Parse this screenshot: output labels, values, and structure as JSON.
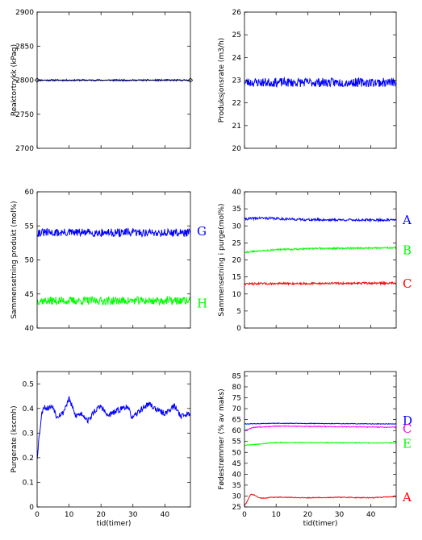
{
  "chart_data": [
    {
      "type": "line",
      "ylabel": "Reaktortrykk (kPag)",
      "xlabel": "",
      "xlim": [
        0,
        48
      ],
      "ylim": [
        2700,
        2900
      ],
      "yticks": [
        2700,
        2750,
        2800,
        2850,
        2900
      ],
      "xticks": [
        0,
        10,
        20,
        30,
        40
      ],
      "show_xticklabels": false,
      "series": [
        {
          "name": "",
          "color": "#0000ff",
          "base": [
            [
              0,
              2800
            ],
            [
              48,
              2800
            ]
          ],
          "noise": 1.2,
          "seed": 11
        },
        {
          "name": "",
          "color": "#000000",
          "marker": "diamond",
          "points": [
            [
              0,
              2800
            ],
            [
              48,
              2800
            ]
          ]
        }
      ]
    },
    {
      "type": "line",
      "ylabel": "Produksjonsrate (m3/h)",
      "xlabel": "",
      "xlim": [
        0,
        48
      ],
      "ylim": [
        20,
        26
      ],
      "yticks": [
        20,
        21,
        22,
        23,
        24,
        25,
        26
      ],
      "xticks": [
        0,
        10,
        20,
        30,
        40
      ],
      "show_xticklabels": false,
      "series": [
        {
          "name": "",
          "color": "#0000ff",
          "base": [
            [
              0,
              22.9
            ],
            [
              48,
              22.9
            ]
          ],
          "noise": 0.2,
          "seed": 23
        }
      ]
    },
    {
      "type": "line",
      "ylabel": "Sammensetning produkt (mol%)",
      "xlabel": "",
      "xlim": [
        0,
        48
      ],
      "ylim": [
        40,
        60
      ],
      "yticks": [
        40,
        45,
        50,
        55,
        60
      ],
      "xticks": [
        0,
        10,
        20,
        30,
        40
      ],
      "show_xticklabels": false,
      "series": [
        {
          "name": "G",
          "color": "#0000ff",
          "base": [
            [
              0,
              54
            ],
            [
              48,
              54
            ]
          ],
          "noise": 0.6,
          "seed": 31
        },
        {
          "name": "H",
          "color": "#00ff00",
          "base": [
            [
              0,
              44
            ],
            [
              48,
              44
            ]
          ],
          "noise": 0.6,
          "seed": 37
        }
      ]
    },
    {
      "type": "line",
      "ylabel": "Sammensetning i purge(mol%)",
      "xlabel": "",
      "xlim": [
        0,
        48
      ],
      "ylim": [
        0,
        40
      ],
      "yticks": [
        0,
        5,
        10,
        15,
        20,
        25,
        30,
        35,
        40
      ],
      "xticks": [
        0,
        10,
        20,
        30,
        40
      ],
      "show_xticklabels": false,
      "series": [
        {
          "name": "A",
          "color": "#0000ff",
          "base": [
            [
              0,
              32
            ],
            [
              5,
              32.3
            ],
            [
              20,
              31.8
            ],
            [
              48,
              31.7
            ]
          ],
          "noise": 0.35,
          "seed": 41
        },
        {
          "name": "B",
          "color": "#00ff00",
          "base": [
            [
              0,
              22.3
            ],
            [
              10,
              23
            ],
            [
              20,
              23.3
            ],
            [
              48,
              23.6
            ]
          ],
          "noise": 0.25,
          "seed": 43
        },
        {
          "name": "C",
          "color": "#ff0000",
          "base": [
            [
              0,
              13
            ],
            [
              48,
              13.2
            ]
          ],
          "noise": 0.3,
          "seed": 47
        }
      ]
    },
    {
      "type": "line",
      "ylabel": "Purgerate (kscmh)",
      "xlabel": "tid(timer)",
      "xlim": [
        0,
        48
      ],
      "ylim": [
        0,
        0.55
      ],
      "yticks": [
        0,
        0.1,
        0.2,
        0.3,
        0.4,
        0.5
      ],
      "xticks": [
        0,
        10,
        20,
        30,
        40
      ],
      "show_xticklabels": true,
      "series": [
        {
          "name": "",
          "color": "#0000ff",
          "base": [
            [
              0,
              0.2
            ],
            [
              0.5,
              0.27
            ],
            [
              1,
              0.33
            ],
            [
              1.5,
              0.38
            ],
            [
              2,
              0.41
            ],
            [
              3,
              0.4
            ],
            [
              5,
              0.41
            ],
            [
              6,
              0.37
            ],
            [
              8,
              0.38
            ],
            [
              10,
              0.44
            ],
            [
              12,
              0.37
            ],
            [
              14,
              0.38
            ],
            [
              16,
              0.35
            ],
            [
              18,
              0.39
            ],
            [
              20,
              0.41
            ],
            [
              22,
              0.37
            ],
            [
              25,
              0.39
            ],
            [
              28,
              0.41
            ],
            [
              30,
              0.36
            ],
            [
              32,
              0.39
            ],
            [
              35,
              0.42
            ],
            [
              38,
              0.39
            ],
            [
              40,
              0.38
            ],
            [
              43,
              0.41
            ],
            [
              45,
              0.37
            ],
            [
              48,
              0.38
            ]
          ],
          "noise": 0.012,
          "seed": 53
        }
      ]
    },
    {
      "type": "line",
      "ylabel": "Fødestrømmer (% av maks)",
      "xlabel": "tid(timer)",
      "xlim": [
        0,
        48
      ],
      "ylim": [
        25,
        87
      ],
      "yticks": [
        25,
        30,
        35,
        40,
        45,
        50,
        55,
        60,
        65,
        70,
        75,
        80,
        85
      ],
      "xticks": [
        0,
        10,
        20,
        30,
        40
      ],
      "show_xticklabels": true,
      "series": [
        {
          "name": "D",
          "color": "#0000ff",
          "base": [
            [
              0,
              63
            ],
            [
              10,
              63.3
            ],
            [
              48,
              63
            ]
          ],
          "noise": 0.15,
          "seed": 61
        },
        {
          "name": "C",
          "color": "#ff00ff",
          "base": [
            [
              0,
              60
            ],
            [
              3,
              61.5
            ],
            [
              10,
              62
            ],
            [
              48,
              61.5
            ]
          ],
          "noise": 0.2,
          "seed": 67
        },
        {
          "name": "E",
          "color": "#00ff00",
          "base": [
            [
              0,
              53.2
            ],
            [
              10,
              54.5
            ],
            [
              48,
              54.3
            ]
          ],
          "noise": 0.2,
          "seed": 71
        },
        {
          "name": "A",
          "color": "#ff0000",
          "base": [
            [
              0,
              25.5
            ],
            [
              1,
              28
            ],
            [
              2,
              30.8
            ],
            [
              3,
              30.5
            ],
            [
              5,
              29
            ],
            [
              10,
              29.5
            ],
            [
              20,
              29.2
            ],
            [
              30,
              29.4
            ],
            [
              40,
              29.2
            ],
            [
              48,
              29.8
            ]
          ],
          "noise": 0.2,
          "seed": 73
        }
      ]
    }
  ]
}
